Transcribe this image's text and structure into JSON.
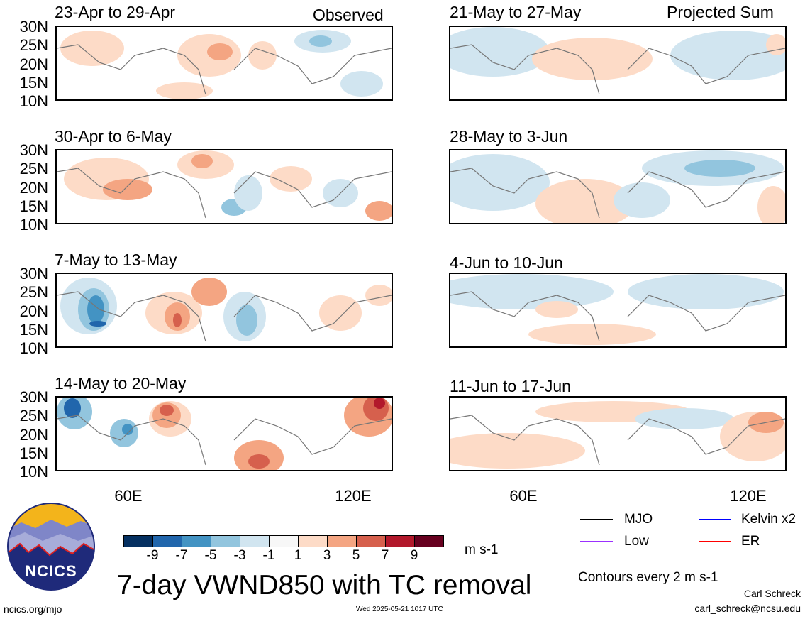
{
  "column_labels": {
    "observed": "Observed",
    "projected": "Projected Sum"
  },
  "panels": [
    {
      "title": "23-Apr to 29-Apr"
    },
    {
      "title": "30-Apr to 6-May"
    },
    {
      "title": "7-May to 13-May"
    },
    {
      "title": "14-May to 20-May"
    },
    {
      "title": "21-May to 27-May"
    },
    {
      "title": "28-May to 3-Jun"
    },
    {
      "title": "4-Jun to 10-Jun"
    },
    {
      "title": "11-Jun to 17-Jun"
    }
  ],
  "lat_labels": [
    "30N",
    "25N",
    "20N",
    "15N",
    "10N"
  ],
  "lon_labels": [
    "60E",
    "120E"
  ],
  "colorbar": {
    "colors": [
      "#053061",
      "#2166ac",
      "#4393c3",
      "#92c5de",
      "#d1e5f0",
      "#f7f7f7",
      "#fddbc7",
      "#f4a582",
      "#d6604d",
      "#b2182b",
      "#67001f"
    ],
    "ticks": [
      "-9",
      "-7",
      "-5",
      "-3",
      "-1",
      "1",
      "3",
      "5",
      "7",
      "9"
    ],
    "units": "m s-1"
  },
  "title": "7-day VWND850 with TC removal",
  "legend": [
    {
      "label": "MJO",
      "color": "#000000"
    },
    {
      "label": "Kelvin x2",
      "color": "#0000ff"
    },
    {
      "label": "Low",
      "color": "#9b30ff"
    },
    {
      "label": "ER",
      "color": "#ff0000"
    }
  ],
  "contours_note": "Contours every 2 m s-1",
  "author": "Carl Schreck",
  "email": "carl_schreck@ncsu.edu",
  "site": "ncics.org/mjo",
  "timestamp": "Wed 2025-05-21 1017 UTC",
  "logo_text": "NCICS"
}
